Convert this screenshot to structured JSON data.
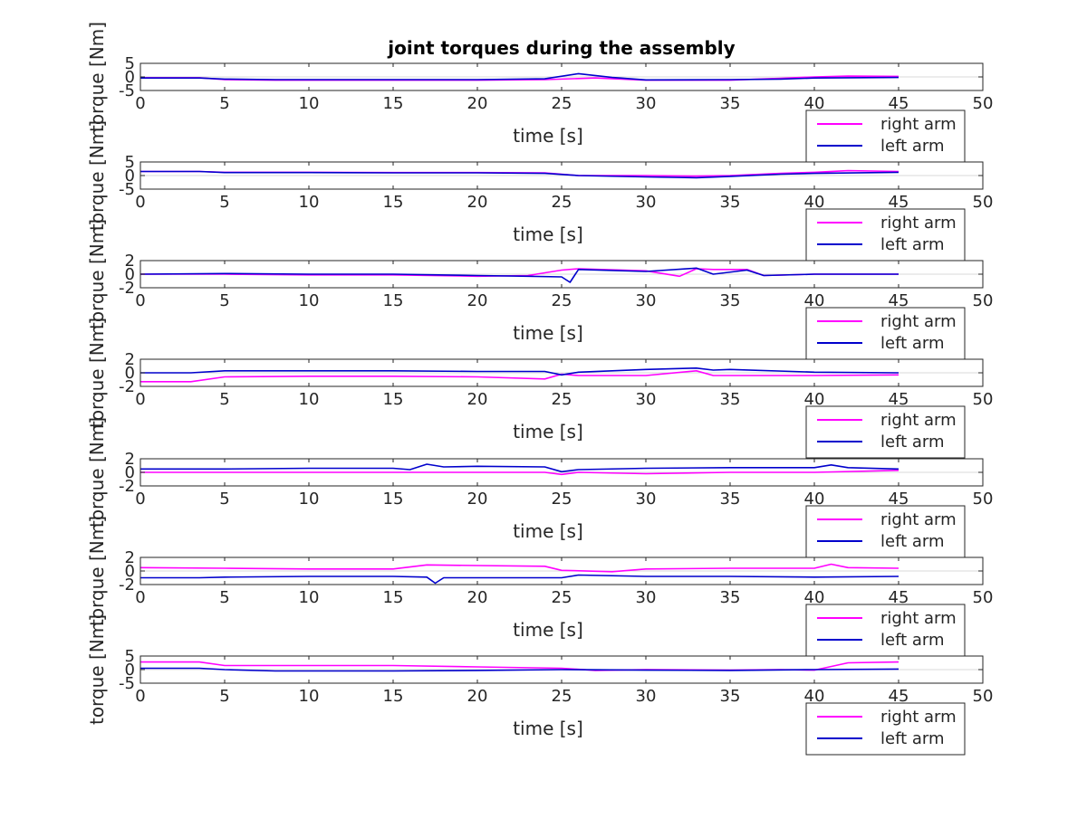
{
  "title": "joint torques during the assembly",
  "chart_data": [
    {
      "type": "line",
      "xlabel": "time [s]",
      "ylabel": "torque [Nm]",
      "xlim": [
        0,
        50
      ],
      "ylim": [
        -5,
        5
      ],
      "xticks": [
        0,
        5,
        10,
        15,
        20,
        25,
        30,
        35,
        40,
        45,
        50
      ],
      "yticks": [
        -5,
        0,
        5
      ],
      "legend_location": "bottom-right",
      "colors": {
        "right arm": "#ff00ff",
        "left arm": "#0000cc"
      },
      "series": [
        {
          "name": "right arm",
          "x": [
            0,
            3.5,
            5,
            8,
            15,
            20,
            24,
            27,
            30,
            35,
            38,
            40,
            42,
            45
          ],
          "y": [
            -0.3,
            -0.3,
            -1,
            -1.2,
            -1.2,
            -1.2,
            -1,
            -0.4,
            -1.2,
            -1.2,
            -0.5,
            0,
            0.3,
            0.2
          ]
        },
        {
          "name": "left arm",
          "x": [
            0,
            3.5,
            5,
            8,
            15,
            20,
            24,
            26,
            28,
            30,
            35,
            38,
            40,
            45
          ],
          "y": [
            -0.4,
            -0.4,
            -0.8,
            -1,
            -1,
            -1,
            -0.7,
            1.2,
            -0.2,
            -1.1,
            -1,
            -0.8,
            -0.4,
            -0.2
          ]
        }
      ]
    },
    {
      "type": "line",
      "xlabel": "time [s]",
      "ylabel": "torque [Nm]",
      "xlim": [
        0,
        50
      ],
      "ylim": [
        -5,
        5
      ],
      "xticks": [
        0,
        5,
        10,
        15,
        20,
        25,
        30,
        35,
        40,
        45,
        50
      ],
      "yticks": [
        -5,
        0,
        5
      ],
      "legend_location": "bottom-right",
      "colors": {
        "right arm": "#ff00ff",
        "left arm": "#0000cc"
      },
      "series": [
        {
          "name": "right arm",
          "x": [
            0,
            3.5,
            5,
            10,
            15,
            20,
            24,
            26,
            30,
            33,
            35,
            38,
            40,
            42,
            45
          ],
          "y": [
            1.5,
            1.5,
            1.2,
            1.2,
            1.1,
            1.1,
            1,
            0,
            0,
            -0.2,
            0,
            0.8,
            1.2,
            1.8,
            1.5
          ]
        },
        {
          "name": "left arm",
          "x": [
            0,
            3.5,
            5,
            10,
            15,
            20,
            24,
            26,
            30,
            33,
            35,
            38,
            40,
            45
          ],
          "y": [
            1.5,
            1.5,
            1.1,
            1.1,
            1,
            1,
            0.8,
            0,
            -0.5,
            -0.8,
            -0.3,
            0.5,
            0.8,
            1.2
          ]
        }
      ]
    },
    {
      "type": "line",
      "xlabel": "time [s]",
      "ylabel": "torque [Nm]",
      "xlim": [
        0,
        50
      ],
      "ylim": [
        -2,
        2
      ],
      "xticks": [
        0,
        5,
        10,
        15,
        20,
        25,
        30,
        35,
        40,
        45,
        50
      ],
      "yticks": [
        -2,
        0,
        2
      ],
      "legend_location": "bottom-right",
      "colors": {
        "right arm": "#ff00ff",
        "left arm": "#0000cc"
      },
      "series": [
        {
          "name": "right arm",
          "x": [
            0,
            5,
            10,
            15,
            20,
            23,
            25,
            26,
            30,
            32,
            33,
            34,
            36,
            37,
            40,
            45
          ],
          "y": [
            0,
            0,
            -0.1,
            -0.1,
            -0.3,
            -0.2,
            0.6,
            0.8,
            0.5,
            -0.3,
            0.8,
            0.7,
            0.7,
            -0.2,
            0,
            0
          ]
        },
        {
          "name": "left arm",
          "x": [
            0,
            5,
            10,
            15,
            20,
            23,
            25,
            25.5,
            26,
            30,
            33,
            34,
            36,
            37,
            40,
            45
          ],
          "y": [
            0,
            0.1,
            0,
            0,
            -0.2,
            -0.3,
            -0.4,
            -1.2,
            0.7,
            0.4,
            0.9,
            0,
            0.6,
            -0.2,
            0,
            0
          ]
        }
      ]
    },
    {
      "type": "line",
      "xlabel": "time [s]",
      "ylabel": "torque [Nm]",
      "xlim": [
        0,
        50
      ],
      "ylim": [
        -2,
        2
      ],
      "xticks": [
        0,
        5,
        10,
        15,
        20,
        25,
        30,
        35,
        40,
        45,
        50
      ],
      "yticks": [
        -2,
        0,
        2
      ],
      "legend_location": "bottom-right",
      "colors": {
        "right arm": "#ff00ff",
        "left arm": "#0000cc"
      },
      "series": [
        {
          "name": "right arm",
          "x": [
            0,
            3,
            5,
            10,
            15,
            20,
            24,
            25,
            26,
            30,
            33,
            34,
            35,
            40,
            45
          ],
          "y": [
            -1.3,
            -1.3,
            -0.6,
            -0.5,
            -0.5,
            -0.6,
            -0.9,
            -0.2,
            -0.4,
            -0.4,
            0.3,
            -0.4,
            -0.4,
            -0.4,
            -0.3
          ]
        },
        {
          "name": "left arm",
          "x": [
            0,
            3,
            5,
            10,
            15,
            20,
            24,
            25,
            26,
            30,
            33,
            34,
            35,
            40,
            45
          ],
          "y": [
            0,
            0,
            0.3,
            0.3,
            0.3,
            0.2,
            0.2,
            -0.3,
            0.1,
            0.5,
            0.7,
            0.4,
            0.5,
            0.1,
            0
          ]
        }
      ]
    },
    {
      "type": "line",
      "xlabel": "time [s]",
      "ylabel": "torque [Nm]",
      "xlim": [
        0,
        50
      ],
      "ylim": [
        -2,
        2
      ],
      "xticks": [
        0,
        5,
        10,
        15,
        20,
        25,
        30,
        35,
        40,
        45,
        50
      ],
      "yticks": [
        -2,
        0,
        2
      ],
      "legend_location": "bottom-right",
      "colors": {
        "right arm": "#ff00ff",
        "left arm": "#0000cc"
      },
      "series": [
        {
          "name": "right arm",
          "x": [
            0,
            5,
            10,
            15,
            17,
            20,
            24,
            25,
            26,
            30,
            35,
            40,
            45
          ],
          "y": [
            0,
            0,
            0,
            0,
            0,
            0,
            0,
            -0.3,
            0,
            -0.2,
            0,
            0,
            0.3
          ]
        },
        {
          "name": "left arm",
          "x": [
            0,
            5,
            10,
            15,
            16,
            17,
            18,
            20,
            24,
            25,
            26,
            30,
            35,
            40,
            41,
            42,
            45
          ],
          "y": [
            0.5,
            0.5,
            0.6,
            0.6,
            0.4,
            1.2,
            0.8,
            0.9,
            0.8,
            0.1,
            0.4,
            0.6,
            0.7,
            0.7,
            1.1,
            0.7,
            0.5
          ]
        }
      ]
    },
    {
      "type": "line",
      "xlabel": "time [s]",
      "ylabel": "torque [Nm]",
      "xlim": [
        0,
        50
      ],
      "ylim": [
        -2,
        2
      ],
      "xticks": [
        0,
        5,
        10,
        15,
        20,
        25,
        30,
        35,
        40,
        45,
        50
      ],
      "yticks": [
        -2,
        0,
        2
      ],
      "legend_location": "bottom-right",
      "colors": {
        "right arm": "#ff00ff",
        "left arm": "#0000cc"
      },
      "series": [
        {
          "name": "right arm",
          "x": [
            0,
            5,
            10,
            15,
            17,
            20,
            24,
            25,
            28,
            30,
            35,
            40,
            41,
            42,
            45
          ],
          "y": [
            0.5,
            0.4,
            0.3,
            0.3,
            0.9,
            0.8,
            0.7,
            0.1,
            -0.1,
            0.3,
            0.4,
            0.4,
            1,
            0.5,
            0.4
          ]
        },
        {
          "name": "left arm",
          "x": [
            0,
            3.5,
            5,
            10,
            15,
            17,
            17.5,
            18,
            20,
            25,
            26,
            30,
            35,
            40,
            45
          ],
          "y": [
            -1,
            -1,
            -0.9,
            -0.8,
            -0.8,
            -0.9,
            -1.8,
            -1,
            -1,
            -1,
            -0.6,
            -0.8,
            -0.8,
            -0.9,
            -0.8
          ]
        }
      ]
    },
    {
      "type": "line",
      "xlabel": "time [s]",
      "ylabel": "torque [Nm]",
      "xlim": [
        0,
        50
      ],
      "ylim": [
        -5,
        5
      ],
      "xticks": [
        0,
        5,
        10,
        15,
        20,
        25,
        30,
        35,
        40,
        45,
        50
      ],
      "yticks": [
        -5,
        0,
        5
      ],
      "legend_location": "bottom-right",
      "colors": {
        "right arm": "#ff00ff",
        "left arm": "#0000cc"
      },
      "series": [
        {
          "name": "right arm",
          "x": [
            0,
            3.5,
            5,
            10,
            15,
            20,
            25,
            27,
            30,
            35,
            38,
            40,
            42,
            45
          ],
          "y": [
            2.8,
            2.8,
            1.5,
            1.5,
            1.5,
            1,
            0.5,
            -0.3,
            0,
            -0.2,
            0,
            -0.2,
            2.5,
            2.8
          ]
        },
        {
          "name": "left arm",
          "x": [
            0,
            3.5,
            5,
            8,
            15,
            20,
            25,
            30,
            35,
            40,
            45
          ],
          "y": [
            0.5,
            0.5,
            0,
            -0.5,
            -0.5,
            -0.3,
            0,
            -0.2,
            -0.3,
            0,
            0.2
          ]
        }
      ]
    }
  ]
}
